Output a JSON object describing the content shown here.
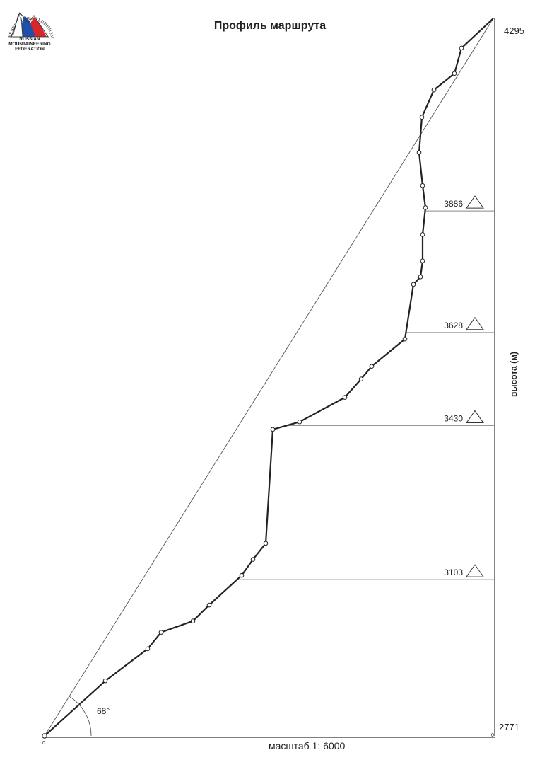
{
  "header": {
    "title": "Профиль маршрута"
  },
  "logo": {
    "ring_text": "ФЕДЕРАЦИЯ АЛЬПИНИЗМА РОССИИ",
    "caption_lines": [
      "RUSSIAN",
      "MOUNTAINEERING",
      "FEDERATION"
    ],
    "colors": {
      "flag_white": "#ffffff",
      "flag_blue": "#1f4fa8",
      "flag_red": "#d8262b",
      "mountain_outline": "#333333"
    }
  },
  "chart_data": {
    "type": "line",
    "title": "Профиль маршрута",
    "xlabel": "масштаб 1: 6000",
    "ylabel": "высота (м)",
    "scale": "1: 6000",
    "ylim": [
      2771,
      4295
    ],
    "altitude_marks": {
      "top": "4295",
      "bottom": "2771"
    },
    "average_angle": "68°",
    "start_marker": "0",
    "end_marker": "0",
    "route_points": [
      {
        "x": 0,
        "y": 2771
      },
      {
        "x": 86,
        "y": 2888
      },
      {
        "x": 146,
        "y": 2956
      },
      {
        "x": 165,
        "y": 2991
      },
      {
        "x": 210,
        "y": 3015
      },
      {
        "x": 233,
        "y": 3049
      },
      {
        "x": 279,
        "y": 3112
      },
      {
        "x": 295,
        "y": 3146
      },
      {
        "x": 313,
        "y": 3180
      },
      {
        "x": 323,
        "y": 3422
      },
      {
        "x": 361,
        "y": 3438
      },
      {
        "x": 425,
        "y": 3490
      },
      {
        "x": 448,
        "y": 3529
      },
      {
        "x": 463,
        "y": 3556
      },
      {
        "x": 510,
        "y": 3614
      },
      {
        "x": 522,
        "y": 3730
      },
      {
        "x": 532,
        "y": 3746
      },
      {
        "x": 535,
        "y": 3780
      },
      {
        "x": 535,
        "y": 3836
      },
      {
        "x": 539,
        "y": 3893
      },
      {
        "x": 535,
        "y": 3940
      },
      {
        "x": 530,
        "y": 4010
      },
      {
        "x": 534,
        "y": 4085
      },
      {
        "x": 551,
        "y": 4143
      },
      {
        "x": 580,
        "y": 4178
      },
      {
        "x": 590,
        "y": 4232
      },
      {
        "x": 635,
        "y": 4295
      }
    ],
    "reference_line": [
      {
        "x": 0,
        "y": 2771
      },
      {
        "x": 635,
        "y": 4295
      }
    ],
    "horizons": [
      {
        "label": "3886",
        "y": 3886
      },
      {
        "label": "3628",
        "y": 3628
      },
      {
        "label": "3430",
        "y": 3430
      },
      {
        "label": "3103",
        "y": 3103
      }
    ],
    "x_range": [
      0,
      635
    ],
    "colors": {
      "profile_line": "#222222",
      "reference_line": "#555555",
      "horizon_line": "#888888",
      "axis_line": "#333333"
    }
  }
}
